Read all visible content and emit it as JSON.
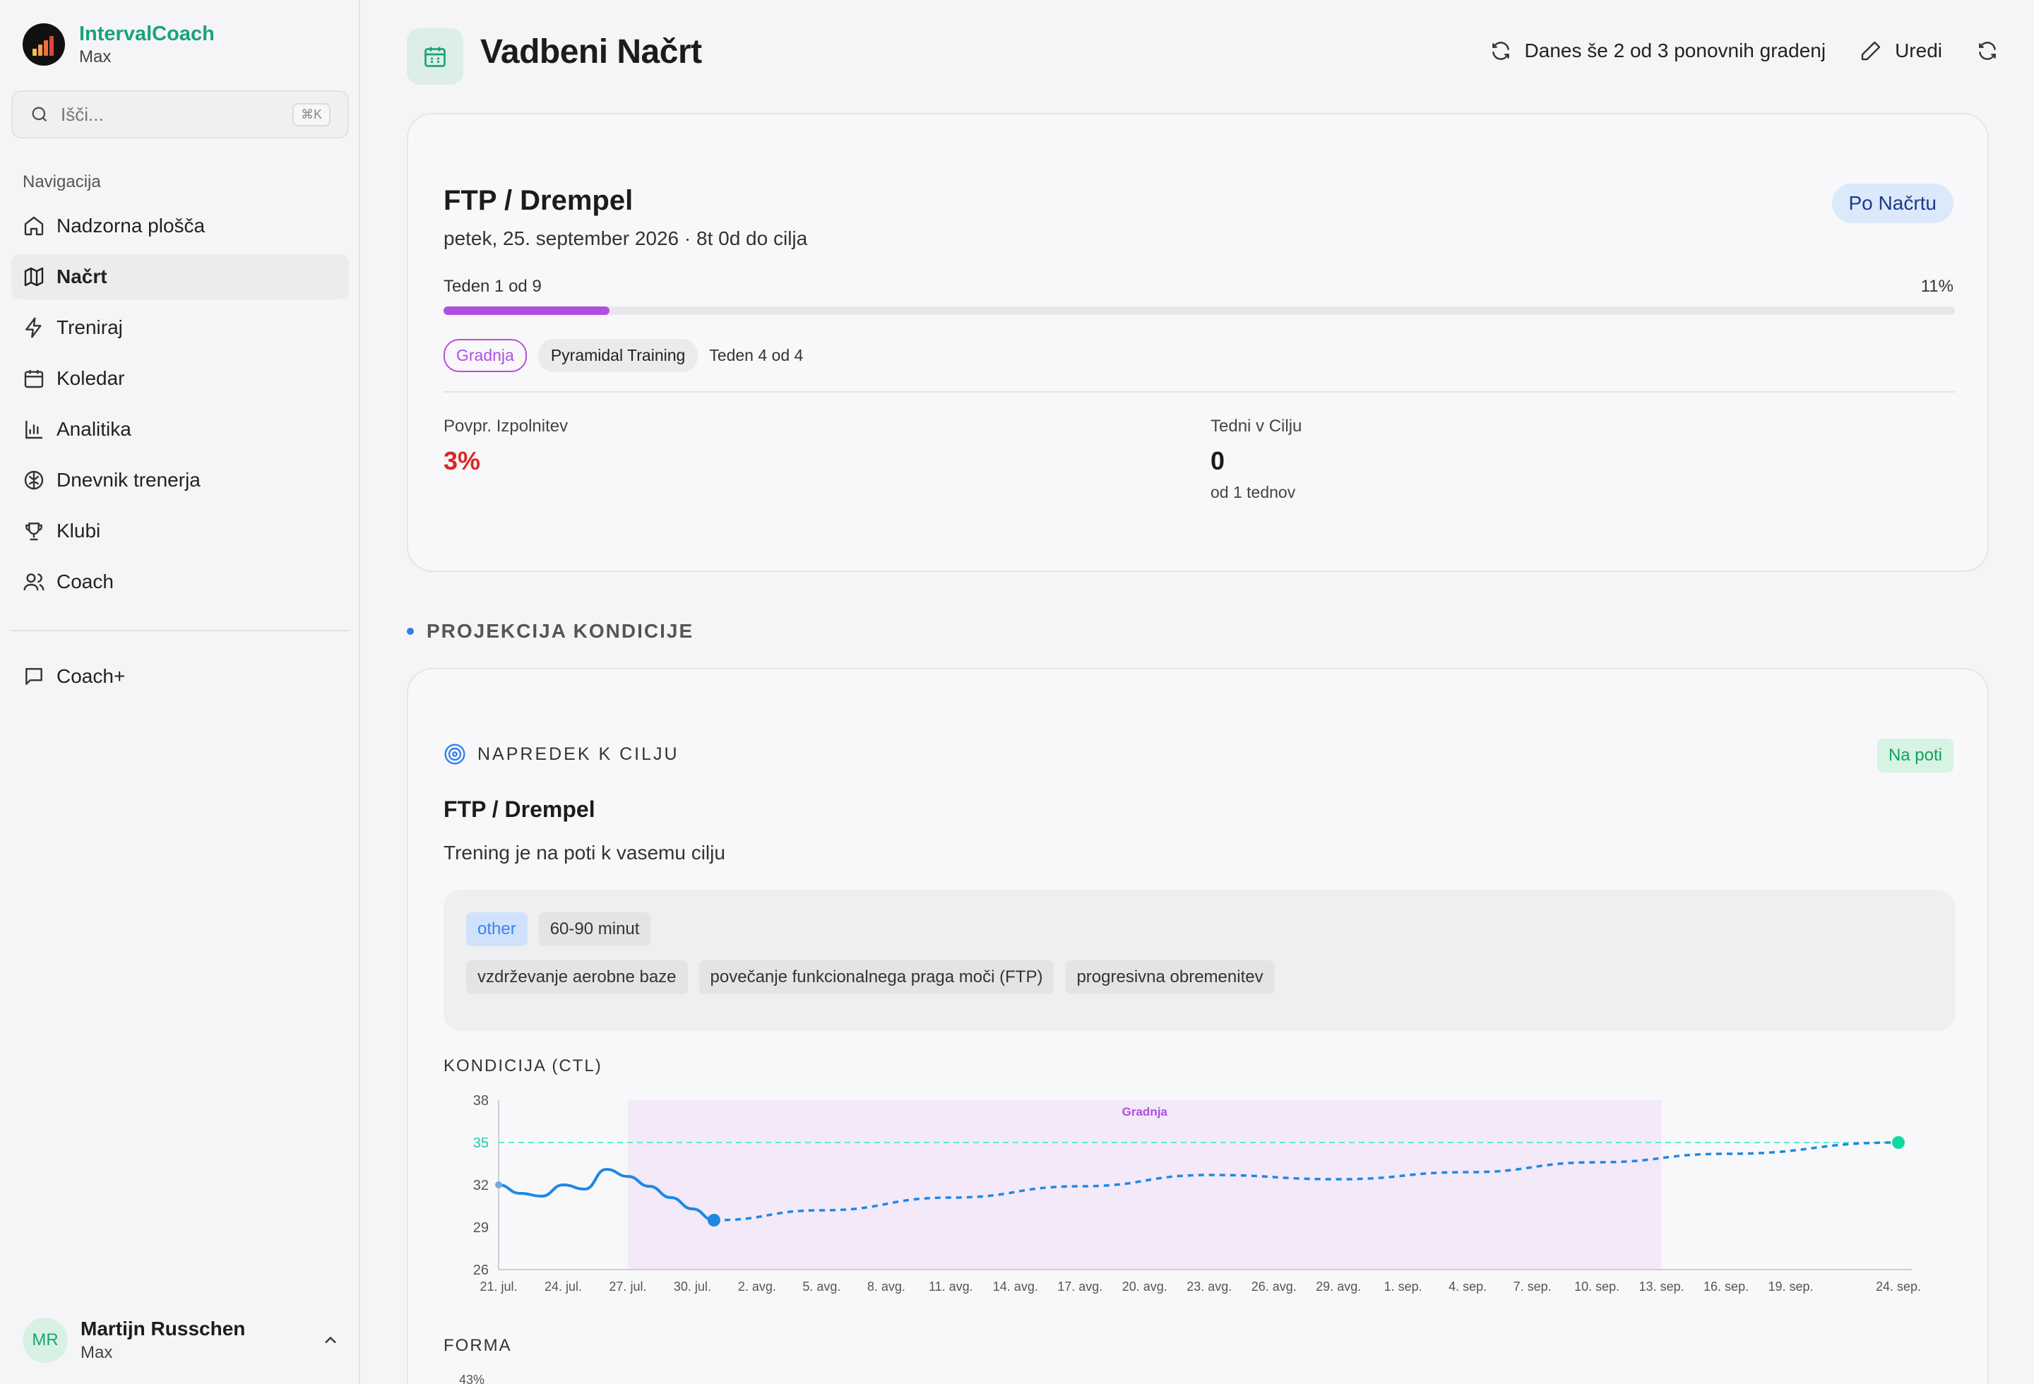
{
  "app": {
    "name": "IntervalCoach",
    "plan": "Max"
  },
  "search": {
    "placeholder": "Išči...",
    "shortcut": "⌘K"
  },
  "nav": {
    "title": "Navigacija",
    "items": [
      {
        "label": "Nadzorna plošča",
        "icon": "home-icon"
      },
      {
        "label": "Načrt",
        "icon": "map-icon",
        "active": true
      },
      {
        "label": "Treniraj",
        "icon": "zap-icon"
      },
      {
        "label": "Koledar",
        "icon": "calendar-icon"
      },
      {
        "label": "Analitika",
        "icon": "bar-chart-icon"
      },
      {
        "label": "Dnevnik trenerja",
        "icon": "brain-icon"
      },
      {
        "label": "Klubi",
        "icon": "trophy-icon"
      },
      {
        "label": "Coach",
        "icon": "users-icon"
      }
    ],
    "extra": {
      "label": "Coach+",
      "icon": "message-icon"
    }
  },
  "user": {
    "initials": "MR",
    "name": "Martijn Russchen",
    "plan": "Max"
  },
  "header": {
    "title": "Vadbeni Načrt",
    "rebuild_label": "Danes še 2 od 3 ponovnih gradenj",
    "edit_label": "Uredi"
  },
  "goal": {
    "title": "FTP / Drempel",
    "date_line": "petek, 25. september 2026 · 8t 0d do cilja",
    "status": "Po Načrtu",
    "week_label": "Teden 1 od 9",
    "week_pct": "11%",
    "progress": 0.11,
    "phase": "Gradnja",
    "block": "Pyramidal Training",
    "block_week": "Teden 4 od 4",
    "avg_label": "Povpr. Izpolnitev",
    "avg_value": "3%",
    "weeks_label": "Tedni v Cilju",
    "weeks_value": "0",
    "weeks_sub": "od 1 tednov"
  },
  "section": {
    "title": "PROJEKCIJA KONDICIJE"
  },
  "progress_card": {
    "header": "NAPREDEK K CILJU",
    "status": "Na poti",
    "title": "FTP / Drempel",
    "desc": "Trening je na poti k vasemu cilju",
    "chips_top": [
      "other",
      "60-90 minut"
    ],
    "chips_bottom": [
      "vzdrževanje aerobne baze",
      "povečanje funkcionalnega praga moči (FTP)",
      "progresivna obremenitev"
    ],
    "ctl_label": "KONDICIJA (CTL)",
    "forma_label": "FORMA",
    "forma_tick": "43%"
  },
  "colors": {
    "accent": "#1aa37a",
    "line": "#1e88e5",
    "target": "#2dd4bf",
    "phase": "#b04ee3",
    "danger": "#dc2626"
  },
  "chart_data": {
    "type": "line",
    "title": "KONDICIJA (CTL)",
    "ylim": [
      26,
      38
    ],
    "yticks": [
      38,
      35,
      32,
      29,
      26
    ],
    "target": 35,
    "target_label": "35",
    "phase_band": {
      "label": "Gradnja",
      "from": "27. jul.",
      "to": "13. sep."
    },
    "xticks": [
      "21. jul.",
      "24. jul.",
      "27. jul.",
      "30. jul.",
      "2. avg.",
      "5. avg.",
      "8. avg.",
      "11. avg.",
      "14. avg.",
      "17. avg.",
      "20. avg.",
      "23. avg.",
      "26. avg.",
      "29. avg.",
      "1. sep.",
      "4. sep.",
      "7. sep.",
      "10. sep.",
      "13. sep.",
      "16. sep.",
      "19. sep.",
      "24. sep."
    ],
    "series": [
      {
        "style": "solid",
        "x": [
          "21. jul.",
          "22. jul.",
          "23. jul.",
          "24. jul.",
          "25. jul.",
          "26. jul.",
          "27. jul.",
          "28. jul.",
          "29. jul.",
          "30. jul.",
          "31. jul."
        ],
        "values": [
          32.0,
          31.4,
          31.2,
          32.0,
          31.7,
          33.1,
          32.6,
          31.9,
          31.1,
          30.3,
          29.5
        ]
      },
      {
        "style": "dashed",
        "x": [
          "31. jul.",
          "5. avg.",
          "11. avg.",
          "17. avg.",
          "23. avg.",
          "29. avg.",
          "4. sep.",
          "10. sep.",
          "16. sep.",
          "24. sep."
        ],
        "values": [
          29.5,
          30.2,
          31.1,
          31.9,
          32.7,
          32.4,
          32.9,
          33.6,
          34.2,
          35.0
        ]
      }
    ]
  }
}
